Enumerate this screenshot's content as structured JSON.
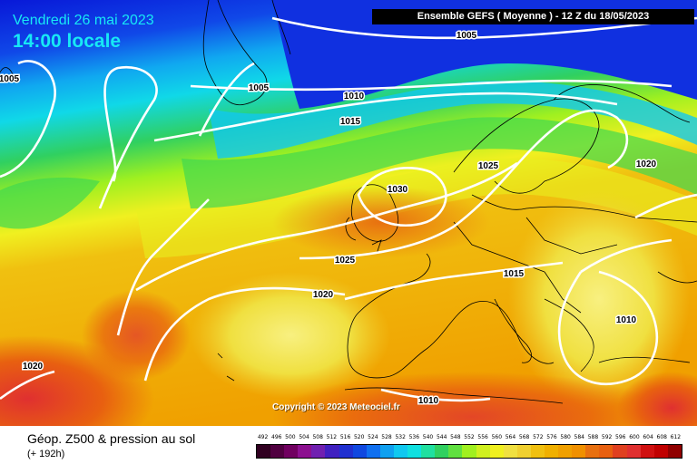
{
  "header": {
    "date_line": "Vendredi 26 mai 2023",
    "time_line": "14:00 locale",
    "run_banner": "Ensemble GEFS  ( Moyenne )  -  12 Z du 18/05/2023"
  },
  "map": {
    "copyright": "Copyright © 2023 Meteociel.fr",
    "pressure_labels": [
      {
        "text": "1005"
      },
      {
        "text": "1005"
      },
      {
        "text": "1005"
      },
      {
        "text": "1010"
      },
      {
        "text": "1015"
      },
      {
        "text": "1025"
      },
      {
        "text": "1020"
      },
      {
        "text": "1030"
      },
      {
        "text": "1025"
      },
      {
        "text": "1015"
      },
      {
        "text": "1020"
      },
      {
        "text": "1010"
      },
      {
        "text": "1020"
      },
      {
        "text": "1010"
      }
    ],
    "colors": {
      "ocean_high": "#1020e0",
      "mid": "#10c8f0",
      "green": "#30d060",
      "yellow": "#f0f020",
      "orange": "#f0a000",
      "deep_orange": "#e86010",
      "red": "#e03030",
      "isobar": "#ffffff"
    }
  },
  "footer": {
    "title": "Géop. Z500 & pression au sol",
    "lead_time": "(+ 192h)",
    "scale_values": [
      "492",
      "496",
      "500",
      "504",
      "508",
      "512",
      "516",
      "520",
      "524",
      "528",
      "532",
      "536",
      "540",
      "544",
      "548",
      "552",
      "556",
      "560",
      "564",
      "568",
      "572",
      "576",
      "580",
      "584",
      "588",
      "592",
      "596",
      "600",
      "604",
      "608",
      "612"
    ],
    "scale_colors": [
      "#300020",
      "#500040",
      "#700060",
      "#8c1090",
      "#7020b0",
      "#4020c0",
      "#2030d0",
      "#1048e0",
      "#1070f0",
      "#10a0f0",
      "#10c8f0",
      "#10e0e0",
      "#20e0a0",
      "#30d060",
      "#60e040",
      "#a0f020",
      "#d0f020",
      "#f0f020",
      "#f0e040",
      "#f0d030",
      "#f0c010",
      "#f0b000",
      "#f0a000",
      "#f09000",
      "#e87010",
      "#e86010",
      "#e04020",
      "#e03030",
      "#d01010",
      "#c00000",
      "#900000"
    ]
  }
}
